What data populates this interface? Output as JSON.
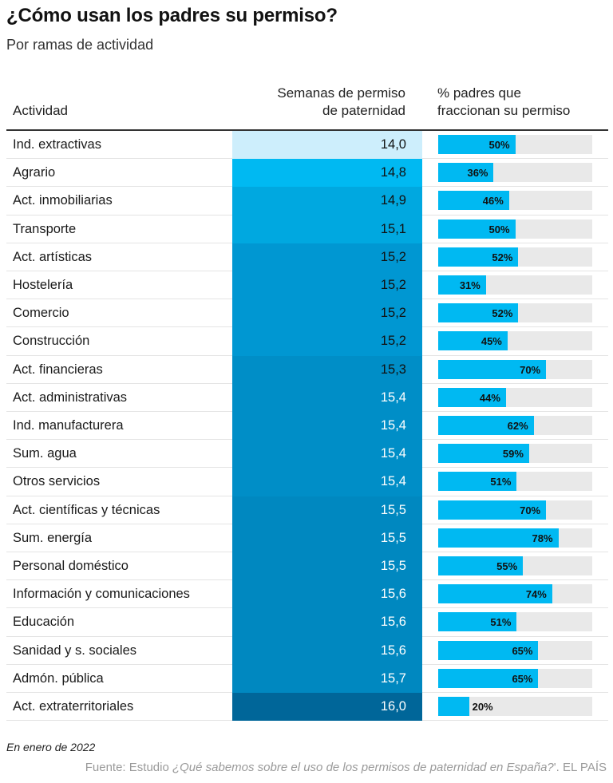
{
  "title": "¿Cómo usan los padres su permiso?",
  "subtitle": "Por ramas de actividad",
  "columns": {
    "actividad": "Actividad",
    "semanas_line1": "Semanas de permiso",
    "semanas_line2": "de paternidad",
    "pct_line1": "% padres que",
    "pct_line2": "fraccionan su permiso"
  },
  "colors": {
    "bar": "#00b9f2",
    "bar_track": "#e9e9e9",
    "weeks_scale": [
      "#cdeefc",
      "#7fd6fb",
      "#66cdfa",
      "#2ec3f7",
      "#00b9f2",
      "#00a8e0",
      "#0097d2",
      "#008ec7",
      "#0088c0",
      "#0083b9",
      "#006699"
    ]
  },
  "chart_data": {
    "type": "table",
    "categories": [
      "Ind. extractivas",
      "Agrario",
      "Act. inmobiliarias",
      "Transporte",
      "Act. artísticas",
      "Hostelería",
      "Comercio",
      "Construcción",
      "Act. financieras",
      "Act. administrativas",
      "Ind. manufacturera",
      "Sum. agua",
      "Otros servicios",
      "Act. científicas y técnicas",
      "Sum. energía",
      "Personal doméstico",
      "Información y comunicaciones",
      "Educación",
      "Sanidad y s. sociales",
      "Admón. pública",
      "Act. extraterritoriales"
    ],
    "series": [
      {
        "name": "Semanas de permiso de paternidad",
        "values": [
          14.0,
          14.8,
          14.9,
          15.1,
          15.2,
          15.2,
          15.2,
          15.2,
          15.3,
          15.4,
          15.4,
          15.4,
          15.4,
          15.5,
          15.5,
          15.5,
          15.6,
          15.6,
          15.6,
          15.7,
          16.0
        ]
      },
      {
        "name": "% padres que fraccionan su permiso",
        "values": [
          50,
          36,
          46,
          50,
          52,
          31,
          52,
          45,
          70,
          44,
          62,
          59,
          51,
          70,
          78,
          55,
          74,
          51,
          65,
          65,
          20
        ]
      }
    ],
    "weeks_labels": [
      "14,0",
      "14,8",
      "14,9",
      "15,1",
      "15,2",
      "15,2",
      "15,2",
      "15,2",
      "15,3",
      "15,4",
      "15,4",
      "15,4",
      "15,4",
      "15,5",
      "15,5",
      "15,5",
      "15,6",
      "15,6",
      "15,6",
      "15,7",
      "16,0"
    ],
    "pct_range": [
      0,
      100
    ]
  },
  "note": "En enero de 2022",
  "source": {
    "prefix": "Fuente: Estudio ",
    "study": "¿Qué sabemos sobre el uso de los permisos de paternidad en España?",
    "suffix": "'. EL PAÍS"
  }
}
